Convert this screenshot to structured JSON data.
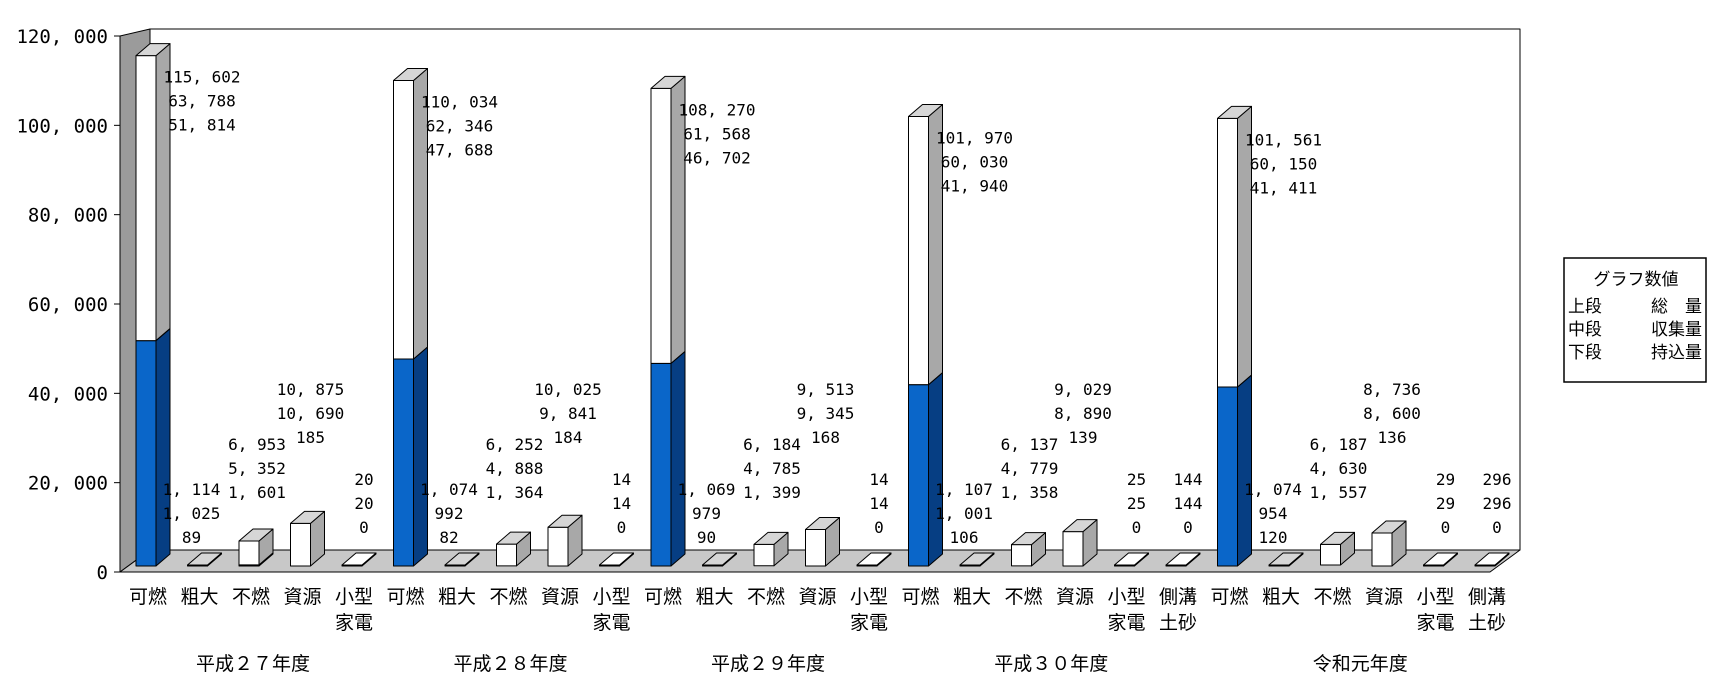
{
  "chart_data": {
    "type": "bar",
    "subtype": "stacked-3d-column",
    "ylim": [
      0,
      120000
    ],
    "yticks": [
      "0",
      "20, 000",
      "40, 000",
      "60, 000",
      "80, 000",
      "100, 000",
      "120, 000"
    ],
    "ytick_values": [
      0,
      20000,
      40000,
      60000,
      80000,
      100000,
      120000
    ],
    "grid": false,
    "legend_position": "right",
    "legend": {
      "title": "グラフ数値",
      "rows": [
        [
          "上段",
          "総　量"
        ],
        [
          "中段",
          "収集量"
        ],
        [
          "下段",
          "持込量"
        ]
      ]
    },
    "series": [
      {
        "name": "持込量",
        "color": "#0A66C9"
      },
      {
        "name": "収集量",
        "color": "#FFFFFF"
      }
    ],
    "groups": [
      {
        "label": "平成２７年度",
        "items": [
          {
            "cat": [
              "可燃"
            ],
            "total": 115602,
            "collected": 63788,
            "brought": 51814,
            "labels": [
              "115, 602",
              "63, 788",
              "51, 814"
            ]
          },
          {
            "cat": [
              "粗大"
            ],
            "total": 1114,
            "collected": 1025,
            "brought": 89,
            "labels": [
              "1, 114",
              "1, 025",
              "89"
            ]
          },
          {
            "cat": [
              "不燃"
            ],
            "total": 6953,
            "collected": 5352,
            "brought": 1601,
            "labels": [
              "6, 953",
              "5, 352",
              "1, 601"
            ]
          },
          {
            "cat": [
              "資源"
            ],
            "total": 10875,
            "collected": 10690,
            "brought": 185,
            "labels": [
              "10, 875",
              "10, 690",
              "185"
            ]
          },
          {
            "cat": [
              "小型",
              "家電"
            ],
            "total": 20,
            "collected": 20,
            "brought": 0,
            "labels": [
              "20",
              "20",
              "0"
            ]
          }
        ]
      },
      {
        "label": "平成２８年度",
        "items": [
          {
            "cat": [
              "可燃"
            ],
            "total": 110034,
            "collected": 62346,
            "brought": 47688,
            "labels": [
              "110, 034",
              "62, 346",
              "47, 688"
            ]
          },
          {
            "cat": [
              "粗大"
            ],
            "total": 1074,
            "collected": 992,
            "brought": 82,
            "labels": [
              "1, 074",
              "992",
              "82"
            ]
          },
          {
            "cat": [
              "不燃"
            ],
            "total": 6252,
            "collected": 4888,
            "brought": 1364,
            "labels": [
              "6, 252",
              "4, 888",
              "1, 364"
            ]
          },
          {
            "cat": [
              "資源"
            ],
            "total": 10025,
            "collected": 9841,
            "brought": 184,
            "labels": [
              "10, 025",
              "9, 841",
              "184"
            ]
          },
          {
            "cat": [
              "小型",
              "家電"
            ],
            "total": 14,
            "collected": 14,
            "brought": 0,
            "labels": [
              "14",
              "14",
              "0"
            ]
          }
        ]
      },
      {
        "label": "平成２９年度",
        "items": [
          {
            "cat": [
              "可燃"
            ],
            "total": 108270,
            "collected": 61568,
            "brought": 46702,
            "labels": [
              "108, 270",
              "61, 568",
              "46, 702"
            ]
          },
          {
            "cat": [
              "粗大"
            ],
            "total": 1069,
            "collected": 979,
            "brought": 90,
            "labels": [
              "1, 069",
              "979",
              "90"
            ]
          },
          {
            "cat": [
              "不燃"
            ],
            "total": 6184,
            "collected": 4785,
            "brought": 1399,
            "labels": [
              "6, 184",
              "4, 785",
              "1, 399"
            ]
          },
          {
            "cat": [
              "資源"
            ],
            "total": 9513,
            "collected": 9345,
            "brought": 168,
            "labels": [
              "9, 513",
              "9, 345",
              "168"
            ]
          },
          {
            "cat": [
              "小型",
              "家電"
            ],
            "total": 14,
            "collected": 14,
            "brought": 0,
            "labels": [
              "14",
              "14",
              "0"
            ]
          }
        ]
      },
      {
        "label": "平成３０年度",
        "items": [
          {
            "cat": [
              "可燃"
            ],
            "total": 101970,
            "collected": 60030,
            "brought": 41940,
            "labels": [
              "101, 970",
              "60, 030",
              "41, 940"
            ]
          },
          {
            "cat": [
              "粗大"
            ],
            "total": 1107,
            "collected": 1001,
            "brought": 106,
            "labels": [
              "1, 107",
              "1, 001",
              "106"
            ]
          },
          {
            "cat": [
              "不燃"
            ],
            "total": 6137,
            "collected": 4779,
            "brought": 1358,
            "labels": [
              "6, 137",
              "4, 779",
              "1, 358"
            ]
          },
          {
            "cat": [
              "資源"
            ],
            "total": 9029,
            "collected": 8890,
            "brought": 139,
            "labels": [
              "9, 029",
              "8, 890",
              "139"
            ]
          },
          {
            "cat": [
              "小型",
              "家電"
            ],
            "total": 25,
            "collected": 25,
            "brought": 0,
            "labels": [
              "25",
              "25",
              "0"
            ]
          },
          {
            "cat": [
              "側溝",
              "土砂"
            ],
            "total": 144,
            "collected": 144,
            "brought": 0,
            "labels": [
              "144",
              "144",
              "0"
            ]
          }
        ]
      },
      {
        "label": "令和元年度",
        "items": [
          {
            "cat": [
              "可燃"
            ],
            "total": 101561,
            "collected": 60150,
            "brought": 41411,
            "labels": [
              "101, 561",
              "60, 150",
              "41, 411"
            ]
          },
          {
            "cat": [
              "粗大"
            ],
            "total": 1074,
            "collected": 954,
            "brought": 120,
            "labels": [
              "1, 074",
              "954",
              "120"
            ]
          },
          {
            "cat": [
              "不燃"
            ],
            "total": 6187,
            "collected": 4630,
            "brought": 1557,
            "labels": [
              "6, 187",
              "4, 630",
              "1, 557"
            ]
          },
          {
            "cat": [
              "資源"
            ],
            "total": 8736,
            "collected": 8600,
            "brought": 136,
            "labels": [
              "8, 736",
              "8, 600",
              "136"
            ]
          },
          {
            "cat": [
              "小型",
              "家電"
            ],
            "total": 29,
            "collected": 29,
            "brought": 0,
            "labels": [
              "29",
              "29",
              "0"
            ]
          },
          {
            "cat": [
              "側溝",
              "土砂"
            ],
            "total": 296,
            "collected": 296,
            "brought": 0,
            "labels": [
              "296",
              "296",
              "0"
            ]
          }
        ]
      }
    ]
  }
}
